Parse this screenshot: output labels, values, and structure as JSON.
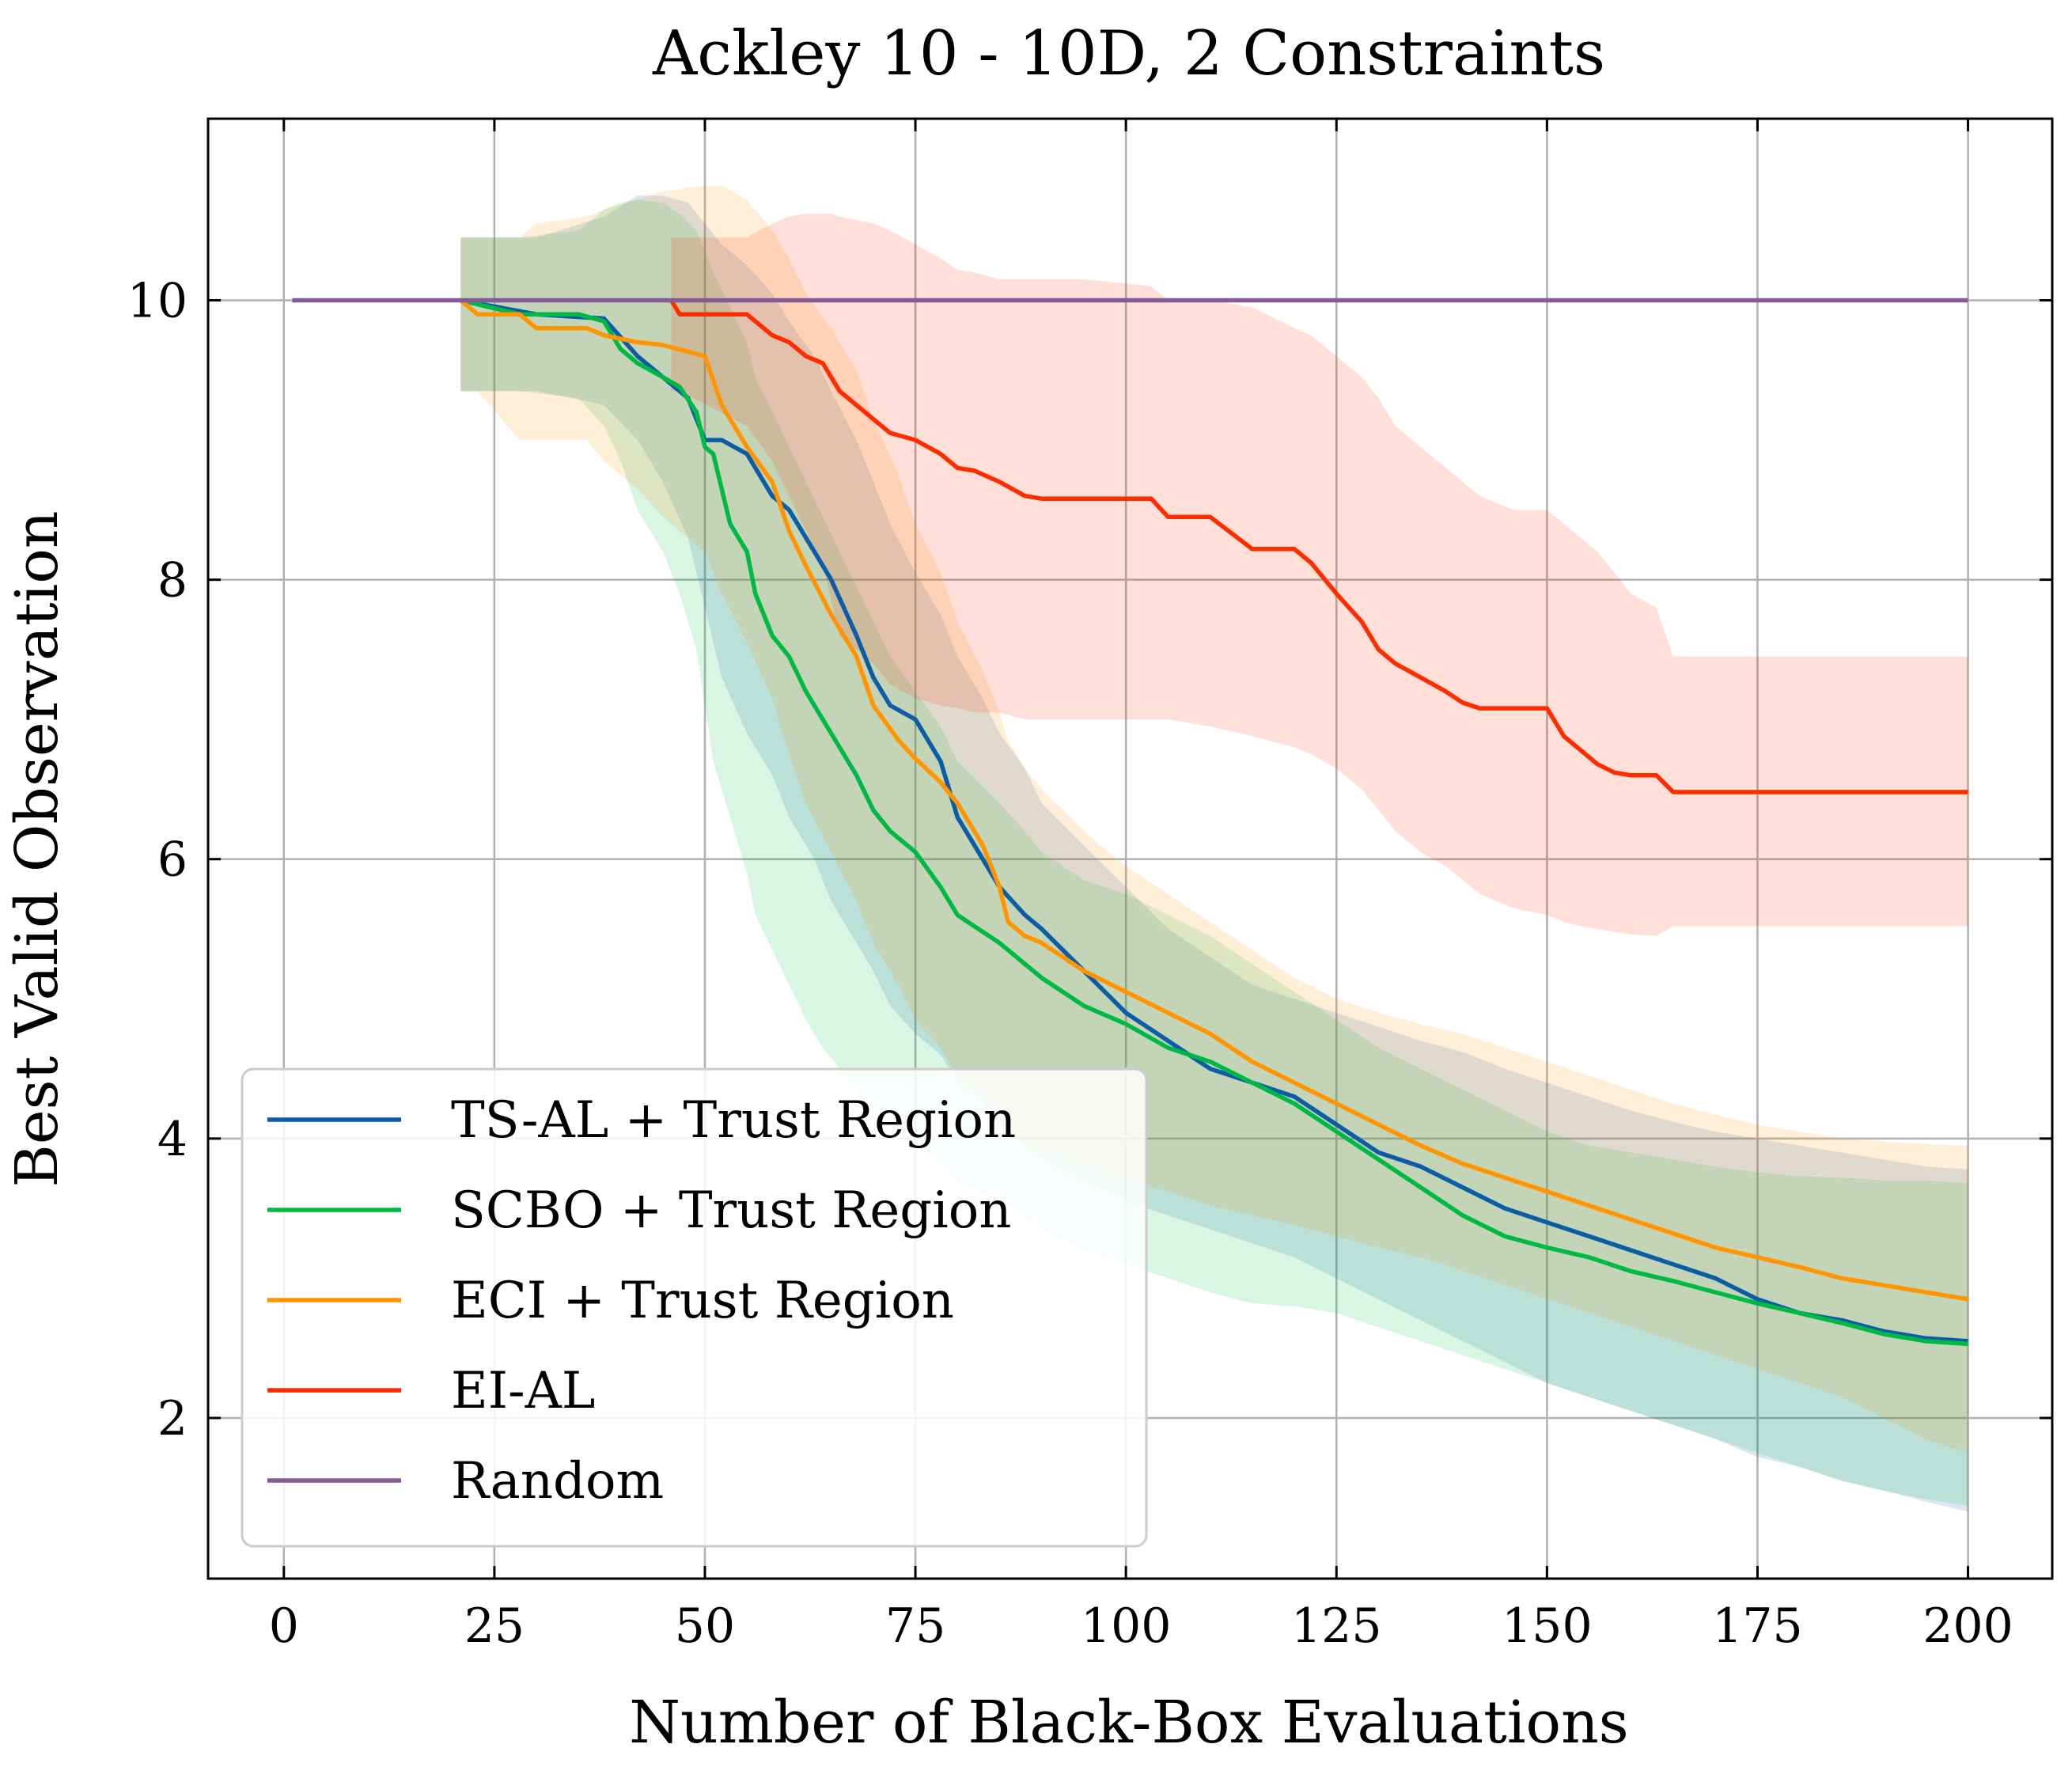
{
  "chart_data": {
    "type": "line",
    "title": "Ackley 10 - 10D, 2 Constraints",
    "xlabel": "Number of Black-Box Evaluations",
    "ylabel": "Best Valid Observation",
    "xlim": [
      -9,
      210
    ],
    "ylim": [
      0.85,
      11.3
    ],
    "xticks": [
      0,
      25,
      50,
      75,
      100,
      125,
      150,
      175,
      200
    ],
    "yticks": [
      2,
      4,
      6,
      8,
      10
    ],
    "grid": true,
    "legend_position": "lower-left",
    "series": [
      {
        "name": "TS-AL + Trust Region",
        "color": "#0C5DA5",
        "x": [
          21,
          30,
          38,
          42,
          45,
          48,
          50,
          52,
          55,
          58,
          60,
          63,
          65,
          68,
          70,
          72,
          75,
          78,
          80,
          83,
          85,
          88,
          90,
          95,
          100,
          105,
          110,
          115,
          120,
          125,
          130,
          135,
          140,
          145,
          150,
          155,
          160,
          165,
          170,
          175,
          180,
          185,
          190,
          195,
          200
        ],
        "y": [
          10.0,
          9.9,
          9.87,
          9.6,
          9.45,
          9.3,
          9.0,
          9.0,
          8.9,
          8.6,
          8.5,
          8.2,
          8.0,
          7.6,
          7.3,
          7.1,
          7.0,
          6.7,
          6.3,
          6.0,
          5.8,
          5.6,
          5.5,
          5.2,
          4.9,
          4.7,
          4.5,
          4.4,
          4.3,
          4.1,
          3.9,
          3.8,
          3.65,
          3.5,
          3.4,
          3.3,
          3.2,
          3.1,
          3.0,
          2.85,
          2.75,
          2.7,
          2.62,
          2.57,
          2.55
        ],
        "band_upper": [
          10.45,
          10.45,
          10.6,
          10.75,
          10.75,
          10.7,
          10.55,
          10.4,
          10.25,
          10.05,
          9.85,
          9.6,
          9.35,
          9.0,
          8.7,
          8.4,
          8.05,
          7.75,
          7.45,
          7.15,
          6.9,
          6.65,
          6.4,
          6.1,
          5.8,
          5.5,
          5.3,
          5.1,
          5.0,
          4.9,
          4.8,
          4.7,
          4.62,
          4.5,
          4.4,
          4.3,
          4.2,
          4.12,
          4.05,
          4.0,
          3.95,
          3.9,
          3.85,
          3.8,
          3.78
        ],
        "band_lower": [
          9.35,
          9.35,
          9.25,
          9.0,
          8.7,
          8.3,
          7.8,
          7.3,
          6.9,
          6.6,
          6.3,
          6.0,
          5.7,
          5.4,
          5.2,
          4.95,
          4.75,
          4.6,
          4.4,
          4.25,
          4.1,
          3.95,
          3.85,
          3.7,
          3.55,
          3.45,
          3.35,
          3.25,
          3.15,
          3.0,
          2.85,
          2.7,
          2.55,
          2.4,
          2.25,
          2.15,
          2.05,
          1.95,
          1.85,
          1.72,
          1.65,
          1.55,
          1.48,
          1.4,
          1.33
        ]
      },
      {
        "name": "SCBO + Trust Region",
        "color": "#00B945",
        "x": [
          21,
          28,
          35,
          38,
          40,
          42,
          45,
          47,
          49,
          50,
          51,
          53,
          55,
          56,
          58,
          60,
          62,
          64,
          66,
          68,
          70,
          72,
          75,
          78,
          80,
          85,
          88,
          90,
          95,
          100,
          105,
          110,
          115,
          120,
          125,
          130,
          135,
          140,
          145,
          150,
          155,
          160,
          165,
          170,
          175,
          180,
          185,
          190,
          195,
          200
        ],
        "y": [
          10.0,
          9.9,
          9.9,
          9.85,
          9.65,
          9.55,
          9.45,
          9.38,
          9.2,
          8.95,
          8.9,
          8.4,
          8.2,
          7.9,
          7.6,
          7.45,
          7.2,
          7.0,
          6.8,
          6.6,
          6.35,
          6.2,
          6.05,
          5.8,
          5.6,
          5.4,
          5.25,
          5.15,
          4.95,
          4.82,
          4.65,
          4.55,
          4.4,
          4.25,
          4.05,
          3.85,
          3.65,
          3.45,
          3.3,
          3.22,
          3.15,
          3.05,
          2.98,
          2.9,
          2.82,
          2.75,
          2.68,
          2.6,
          2.55,
          2.53
        ],
        "band_upper": [
          10.45,
          10.45,
          10.5,
          10.65,
          10.7,
          10.72,
          10.7,
          10.62,
          10.5,
          10.35,
          10.2,
          9.95,
          9.7,
          9.45,
          9.2,
          8.95,
          8.7,
          8.45,
          8.2,
          7.95,
          7.7,
          7.45,
          7.2,
          6.95,
          6.7,
          6.4,
          6.2,
          6.05,
          5.85,
          5.75,
          5.6,
          5.45,
          5.25,
          5.05,
          4.85,
          4.65,
          4.5,
          4.35,
          4.2,
          4.05,
          3.95,
          3.9,
          3.85,
          3.8,
          3.76,
          3.73,
          3.72,
          3.7,
          3.7,
          3.68
        ],
        "band_lower": [
          9.35,
          9.35,
          9.3,
          9.1,
          8.85,
          8.5,
          8.2,
          7.9,
          7.5,
          7.1,
          6.7,
          6.3,
          5.9,
          5.6,
          5.35,
          5.1,
          4.85,
          4.65,
          4.5,
          4.35,
          4.2,
          4.1,
          3.95,
          3.82,
          3.7,
          3.55,
          3.45,
          3.35,
          3.2,
          3.1,
          3.0,
          2.9,
          2.82,
          2.8,
          2.75,
          2.65,
          2.55,
          2.45,
          2.35,
          2.25,
          2.15,
          2.05,
          1.95,
          1.85,
          1.75,
          1.65,
          1.55,
          1.48,
          1.42,
          1.37
        ]
      },
      {
        "name": "ECI + Trust Region",
        "color": "#FF9500",
        "x": [
          21,
          23,
          28,
          30,
          36,
          38,
          42,
          45,
          50,
          52,
          55,
          58,
          60,
          62,
          65,
          68,
          70,
          73,
          75,
          78,
          80,
          83,
          85,
          86,
          88,
          90,
          95,
          100,
          105,
          110,
          115,
          120,
          125,
          130,
          135,
          140,
          145,
          150,
          155,
          160,
          165,
          170,
          175,
          180,
          185,
          190,
          195,
          200
        ],
        "y": [
          10.0,
          9.9,
          9.9,
          9.8,
          9.8,
          9.75,
          9.7,
          9.68,
          9.6,
          9.25,
          8.95,
          8.7,
          8.35,
          8.1,
          7.75,
          7.45,
          7.1,
          6.85,
          6.72,
          6.55,
          6.4,
          6.1,
          5.8,
          5.55,
          5.45,
          5.4,
          5.2,
          5.05,
          4.9,
          4.75,
          4.55,
          4.4,
          4.25,
          4.1,
          3.95,
          3.82,
          3.72,
          3.62,
          3.52,
          3.42,
          3.32,
          3.22,
          3.15,
          3.08,
          3.0,
          2.95,
          2.9,
          2.85
        ],
        "band_upper": [
          10.45,
          10.45,
          10.45,
          10.55,
          10.6,
          10.65,
          10.72,
          10.78,
          10.82,
          10.82,
          10.72,
          10.5,
          10.3,
          10.05,
          9.8,
          9.5,
          9.15,
          8.75,
          8.4,
          8.05,
          7.7,
          7.35,
          7.05,
          6.85,
          6.65,
          6.5,
          6.2,
          5.95,
          5.75,
          5.55,
          5.35,
          5.15,
          5.0,
          4.9,
          4.82,
          4.75,
          4.65,
          4.55,
          4.45,
          4.35,
          4.25,
          4.17,
          4.1,
          4.05,
          4.0,
          3.98,
          3.96,
          3.95
        ],
        "band_lower": [
          9.35,
          9.35,
          9.0,
          9.0,
          9.0,
          8.85,
          8.65,
          8.45,
          8.2,
          7.9,
          7.55,
          7.15,
          6.75,
          6.4,
          6.05,
          5.7,
          5.4,
          5.1,
          4.85,
          4.65,
          4.45,
          4.3,
          4.15,
          4.05,
          3.95,
          3.9,
          3.8,
          3.7,
          3.62,
          3.52,
          3.45,
          3.38,
          3.3,
          3.22,
          3.15,
          3.05,
          2.95,
          2.85,
          2.75,
          2.65,
          2.55,
          2.45,
          2.35,
          2.25,
          2.15,
          2.0,
          1.85,
          1.75
        ]
      },
      {
        "name": "EI-AL",
        "color": "#FF2C00",
        "x": [
          46,
          47,
          55,
          58,
          60,
          62,
          64,
          65,
          66,
          70,
          72,
          75,
          78,
          80,
          82,
          85,
          88,
          90,
          95,
          100,
          103,
          105,
          110,
          115,
          120,
          122,
          125,
          128,
          130,
          132,
          135,
          138,
          140,
          142,
          144,
          146,
          150,
          152,
          154,
          156,
          158,
          160,
          163,
          165,
          170,
          180,
          190,
          200
        ],
        "y": [
          10.0,
          9.9,
          9.9,
          9.75,
          9.7,
          9.6,
          9.55,
          9.45,
          9.35,
          9.15,
          9.05,
          9.0,
          8.9,
          8.8,
          8.78,
          8.7,
          8.6,
          8.58,
          8.58,
          8.58,
          8.58,
          8.45,
          8.45,
          8.22,
          8.22,
          8.12,
          7.9,
          7.7,
          7.5,
          7.4,
          7.3,
          7.2,
          7.12,
          7.08,
          7.08,
          7.08,
          7.08,
          6.88,
          6.78,
          6.68,
          6.62,
          6.6,
          6.6,
          6.48,
          6.48,
          6.48,
          6.48,
          6.48
        ],
        "band_upper": [
          10.45,
          10.45,
          10.45,
          10.55,
          10.6,
          10.62,
          10.62,
          10.62,
          10.6,
          10.55,
          10.5,
          10.4,
          10.3,
          10.22,
          10.2,
          10.15,
          10.15,
          10.15,
          10.15,
          10.12,
          10.1,
          10.0,
          10.0,
          9.95,
          9.8,
          9.75,
          9.6,
          9.45,
          9.3,
          9.1,
          8.95,
          8.8,
          8.7,
          8.6,
          8.55,
          8.5,
          8.5,
          8.4,
          8.3,
          8.2,
          8.05,
          7.9,
          7.8,
          7.45,
          7.45,
          7.45,
          7.45,
          7.45
        ],
        "band_lower": [
          9.35,
          9.35,
          9.1,
          8.85,
          8.6,
          8.35,
          8.1,
          7.85,
          7.6,
          7.4,
          7.25,
          7.15,
          7.1,
          7.08,
          7.05,
          7.05,
          7.0,
          7.0,
          7.0,
          7.0,
          7.0,
          7.0,
          6.95,
          6.88,
          6.8,
          6.75,
          6.65,
          6.5,
          6.35,
          6.2,
          6.05,
          5.95,
          5.85,
          5.75,
          5.7,
          5.65,
          5.6,
          5.55,
          5.52,
          5.5,
          5.48,
          5.46,
          5.45,
          5.52,
          5.52,
          5.52,
          5.52,
          5.52
        ]
      },
      {
        "name": "Random",
        "color": "#845B97",
        "x": [
          1,
          200
        ],
        "y": [
          10.0,
          10.0
        ]
      }
    ]
  }
}
